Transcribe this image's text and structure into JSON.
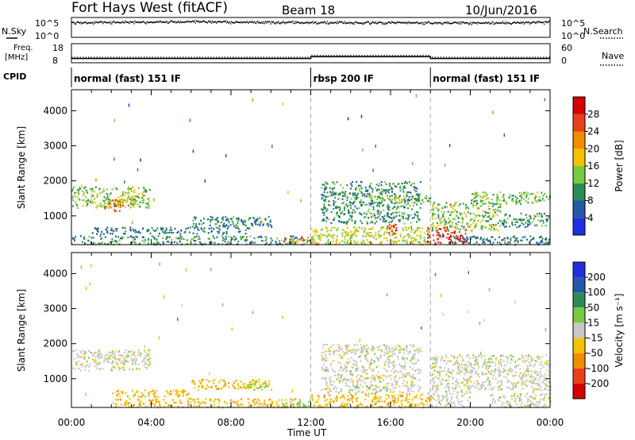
{
  "header": {
    "title": "Fort Hays West (fitACF)",
    "beam": "Beam 18",
    "date": "10/Jun/2016"
  },
  "top_panels": {
    "nsky_label": "N.Sky",
    "nsky_ticks": [
      "10^5",
      "10^0"
    ],
    "nsky_right_ticks": [
      "10^5",
      "10^0"
    ],
    "nsearch_label": "N.Search",
    "freq_label_1": "Freq.",
    "freq_label_2": "[MHz]",
    "freq_ticks": [
      "18",
      "8"
    ],
    "nave_ticks": [
      "60",
      "0"
    ],
    "nave_label": "Nave",
    "cpid_label": "CPID"
  },
  "cpid_segments": [
    {
      "start_hour": 0,
      "end_hour": 12,
      "label": "normal (fast) 151 IF"
    },
    {
      "start_hour": 12,
      "end_hour": 18,
      "label": "rbsp 200 IF"
    },
    {
      "start_hour": 18,
      "end_hour": 24,
      "label": "normal (fast) 151 IF"
    }
  ],
  "axes": {
    "ylabel": "Slant Range [km]",
    "yticks": [
      1000,
      2000,
      3000,
      4000
    ],
    "ylim": [
      180,
      4600
    ],
    "xlabel": "Time UT",
    "xlim": [
      0,
      24
    ],
    "xticks": [
      "00:00",
      "04:00",
      "08:00",
      "12:00",
      "16:00",
      "20:00",
      "00:00"
    ],
    "mode_boundaries_hours": [
      12,
      18
    ]
  },
  "power_colorbar": {
    "label": "Power [dB]",
    "ticks": [
      "4",
      "8",
      "12",
      "16",
      "20",
      "24",
      "28"
    ],
    "colors": [
      "#1f2fe0",
      "#2158a8",
      "#2e8b57",
      "#7ac943",
      "#f2c200",
      "#f28c00",
      "#e8401a",
      "#d40000"
    ]
  },
  "velocity_colorbar": {
    "label": "Velocity [m s⁻¹]",
    "ticks": [
      "200",
      "100",
      "50",
      "15",
      "-15",
      "-50",
      "-100",
      "-200"
    ],
    "colors": [
      "#1f2fe0",
      "#2158a8",
      "#2e8b57",
      "#7ac943",
      "#c8c8c8",
      "#f2c200",
      "#f28c00",
      "#e8401a",
      "#d40000"
    ]
  },
  "chart_data": [
    {
      "type": "line",
      "series": [
        {
          "name": "N.Sky",
          "x": [
            0,
            2,
            4,
            6,
            8,
            10,
            12,
            14,
            16,
            18,
            20,
            22,
            24
          ],
          "values": [
            20000,
            25000,
            30000,
            40000,
            30000,
            25000,
            22000,
            20000,
            18000,
            16000,
            15000,
            18000,
            25000
          ]
        },
        {
          "name": "N.Search",
          "x": [
            0,
            2,
            4,
            6,
            8,
            10,
            12,
            14,
            16,
            18,
            20,
            22,
            24
          ],
          "values": [
            20000,
            25000,
            30000,
            40000,
            30000,
            25000,
            22000,
            20000,
            18000,
            16000,
            15000,
            18000,
            25000
          ]
        }
      ],
      "xlim": [
        0,
        24
      ]
    },
    {
      "type": "line",
      "series": [
        {
          "name": "Freq.",
          "x": [
            0,
            2,
            2,
            12,
            12,
            18,
            18,
            24
          ],
          "values": [
            10,
            10,
            10,
            10,
            11,
            11,
            10,
            10
          ]
        },
        {
          "name": "Nave",
          "x": [
            0,
            12,
            12,
            18,
            18,
            24
          ],
          "values": [
            16,
            16,
            22,
            22,
            16,
            16
          ]
        }
      ],
      "xlim": [
        0,
        24
      ]
    },
    {
      "type": "heatmap",
      "quantity": "Power [dB]",
      "xlim": [
        0,
        24
      ],
      "ylim": [
        180,
        4600
      ],
      "regions": [
        {
          "t0": 0.0,
          "t1": 3.9,
          "r0": 1250,
          "r1": 1850,
          "value": 14
        },
        {
          "t0": 1.6,
          "t1": 2.6,
          "r0": 1150,
          "r1": 1500,
          "value": 24
        },
        {
          "t0": 2.2,
          "t1": 3.2,
          "r0": 1350,
          "r1": 1600,
          "value": 18
        },
        {
          "t0": 0.0,
          "t1": 12.0,
          "r0": 200,
          "r1": 450,
          "value": 10
        },
        {
          "t0": 1.0,
          "t1": 9.0,
          "r0": 500,
          "r1": 700,
          "value": 8
        },
        {
          "t0": 6.0,
          "t1": 10.0,
          "r0": 700,
          "r1": 1000,
          "value": 9
        },
        {
          "t0": 10.5,
          "t1": 12.5,
          "r0": 200,
          "r1": 400,
          "value": 22
        },
        {
          "t0": 12.0,
          "t1": 18.0,
          "r0": 200,
          "r1": 700,
          "value": 16
        },
        {
          "t0": 15.7,
          "t1": 16.3,
          "r0": 500,
          "r1": 800,
          "value": 26
        },
        {
          "t0": 12.5,
          "t1": 17.5,
          "r0": 800,
          "r1": 2000,
          "value": 10
        },
        {
          "t0": 15.0,
          "t1": 18.0,
          "r0": 1400,
          "r1": 1600,
          "value": 14
        },
        {
          "t0": 17.8,
          "t1": 19.8,
          "r0": 200,
          "r1": 700,
          "value": 28
        },
        {
          "t0": 18.0,
          "t1": 21.5,
          "r0": 600,
          "r1": 1400,
          "value": 14
        },
        {
          "t0": 21.5,
          "t1": 24.0,
          "r0": 700,
          "r1": 1100,
          "value": 10
        },
        {
          "t0": 20.0,
          "t1": 24.0,
          "r0": 1350,
          "r1": 1700,
          "value": 13
        },
        {
          "t0": 19.0,
          "t1": 24.0,
          "r0": 200,
          "r1": 450,
          "value": 8
        }
      ]
    },
    {
      "type": "heatmap",
      "quantity": "Velocity [m s⁻¹]",
      "xlim": [
        0,
        24
      ],
      "ylim": [
        180,
        4600
      ],
      "regions": [
        {
          "t0": 0.0,
          "t1": 3.9,
          "r0": 1250,
          "r1": 1850,
          "value": 0
        },
        {
          "t0": 2.0,
          "t1": 11.5,
          "r0": 200,
          "r1": 450,
          "value": -40
        },
        {
          "t0": 2.0,
          "t1": 6.0,
          "r0": 500,
          "r1": 700,
          "value": -40
        },
        {
          "t0": 6.0,
          "t1": 10.0,
          "r0": 700,
          "r1": 1000,
          "value": -40
        },
        {
          "t0": 8.8,
          "t1": 9.8,
          "r0": 700,
          "r1": 900,
          "value": 30
        },
        {
          "t0": 10.5,
          "t1": 12.0,
          "r0": 200,
          "r1": 400,
          "value": 30
        },
        {
          "t0": 12.0,
          "t1": 18.0,
          "r0": 200,
          "r1": 600,
          "value": -40
        },
        {
          "t0": 12.5,
          "t1": 17.5,
          "r0": 600,
          "r1": 2000,
          "value": 0
        },
        {
          "t0": 17.8,
          "t1": 20.0,
          "r0": 200,
          "r1": 700,
          "value": 0
        },
        {
          "t0": 18.0,
          "t1": 24.0,
          "r0": 700,
          "r1": 1700,
          "value": 0
        },
        {
          "t0": 21.0,
          "t1": 24.0,
          "r0": 200,
          "r1": 600,
          "value": 0
        }
      ]
    }
  ]
}
